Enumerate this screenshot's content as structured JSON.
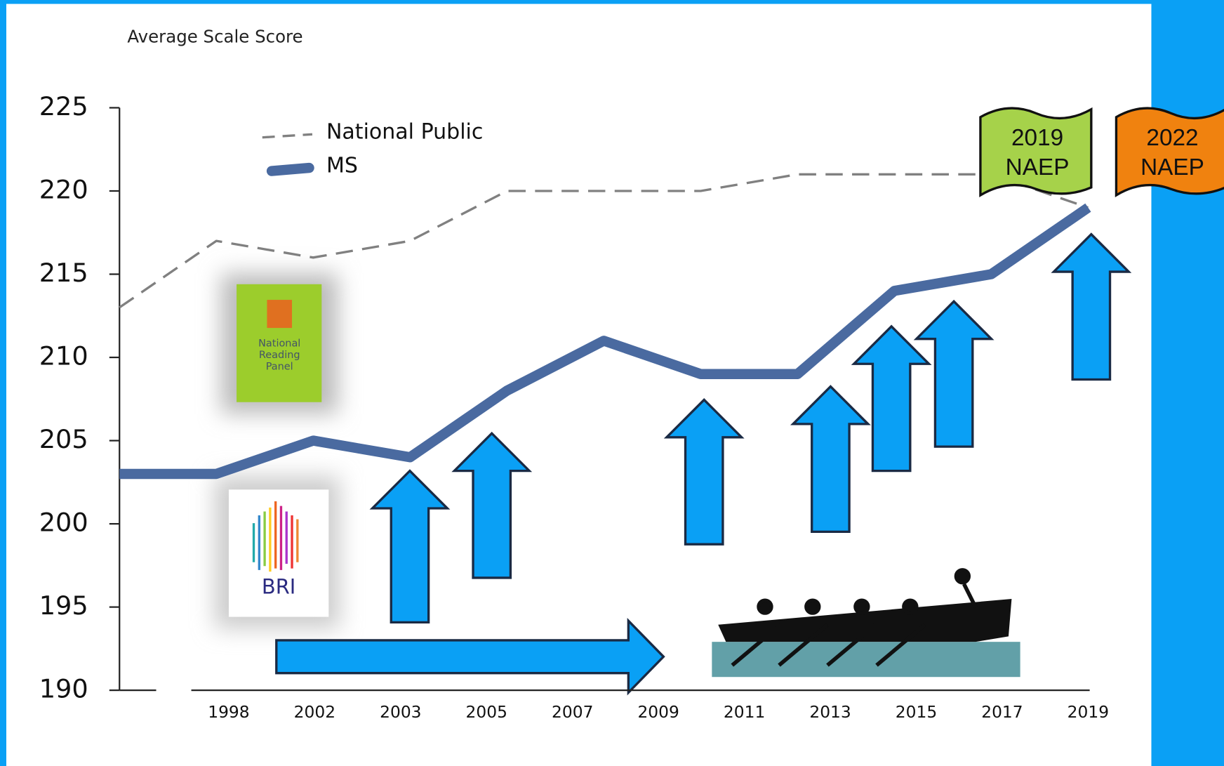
{
  "chart_data": {
    "type": "line",
    "y_label": "Average Scale Score",
    "categories": [
      "1998",
      "2002",
      "2003",
      "2005",
      "2007",
      "2009",
      "2011",
      "2013",
      "2015",
      "2017",
      "2019"
    ],
    "series": [
      {
        "name": "National Public",
        "color": "#808080",
        "dashed": true,
        "values": [
          213,
          217,
          216,
          217,
          220,
          220,
          220,
          221,
          221,
          221,
          219
        ]
      },
      {
        "name": "MS",
        "color": "#4a6aa0",
        "dashed": false,
        "values": [
          203,
          203,
          205,
          204,
          208,
          211,
          209,
          209,
          214,
          215,
          219
        ]
      }
    ],
    "ylim": [
      190,
      225
    ],
    "yticks": [
      190,
      195,
      200,
      205,
      210,
      215,
      220,
      225
    ],
    "banners": [
      {
        "lines": [
          "2019",
          "NAEP"
        ],
        "color": "#a6d24a"
      },
      {
        "lines": [
          "2022",
          "NAEP"
        ],
        "color": "#f0820f"
      }
    ],
    "logos": [
      "National Reading Panel",
      "BRI"
    ]
  }
}
